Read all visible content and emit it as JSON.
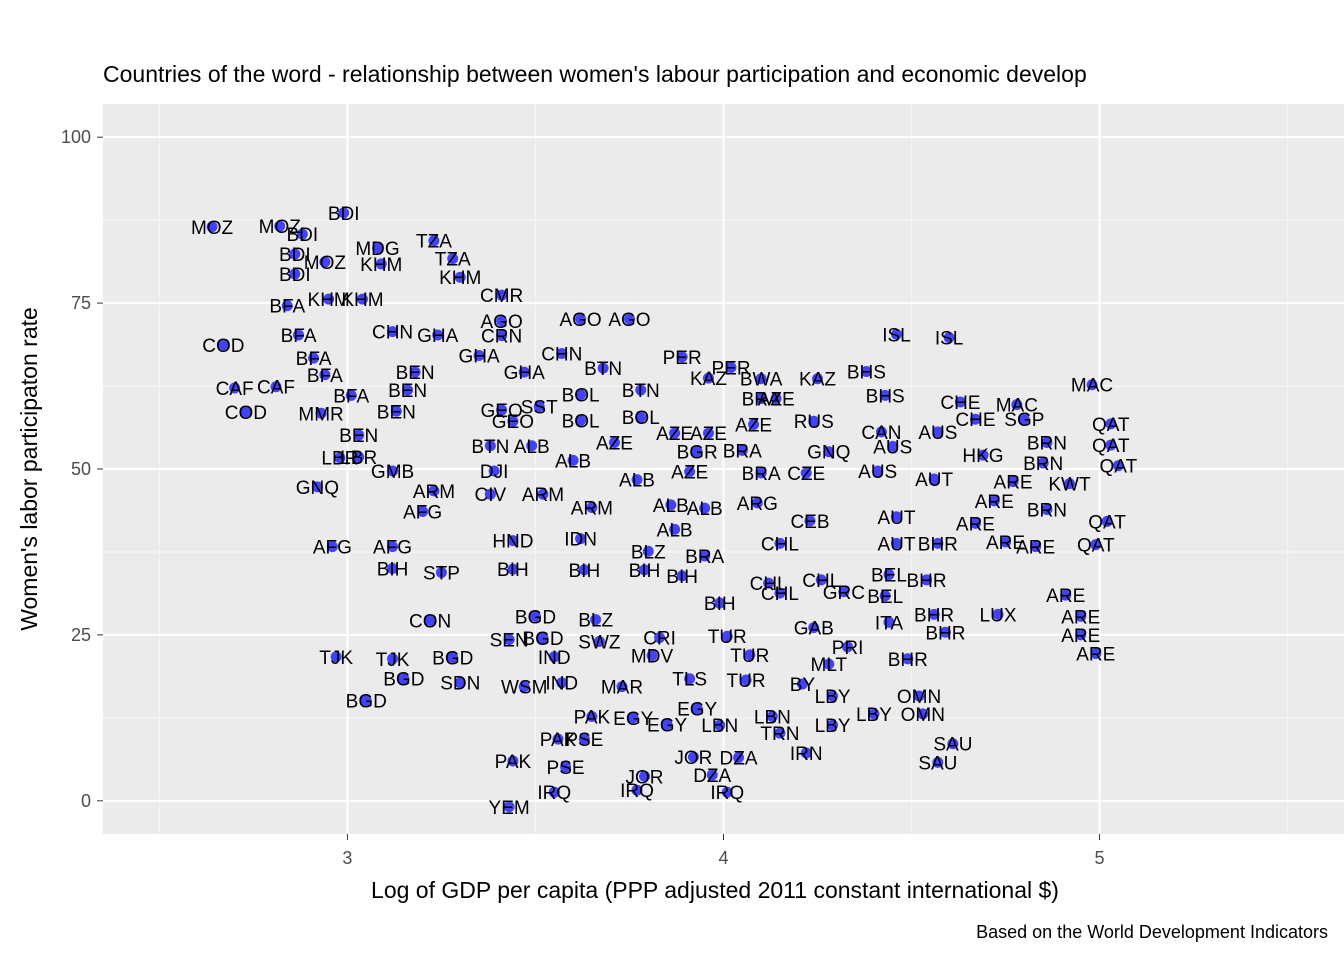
{
  "chart_data": {
    "type": "scatter",
    "title": "Countries of the word - relationship between women's labour participation and economic develop",
    "xlabel": "Log of GDP per capita (PPP adjusted 2011 constant international $)",
    "ylabel": "Women's labor participaton rate",
    "caption": "Based on the World Development Indicators",
    "xlim": [
      2.35,
      5.65
    ],
    "ylim": [
      -5,
      105
    ],
    "x_ticks": [
      3,
      4,
      5
    ],
    "x_tick_labels": [
      "3",
      "4",
      "5"
    ],
    "y_ticks": [
      0,
      25,
      50,
      75,
      100
    ],
    "y_tick_labels": [
      "0",
      "25",
      "50",
      "75",
      "100"
    ],
    "grid": true,
    "legend": "none",
    "point_color": "#0000ff",
    "panel_color": "#ebebeb",
    "points": [
      {
        "x": 2.64,
        "y": 86.5,
        "label": "MOZ"
      },
      {
        "x": 2.82,
        "y": 86.6,
        "label": "MOZ"
      },
      {
        "x": 2.94,
        "y": 81.2,
        "label": "MOZ"
      },
      {
        "x": 2.99,
        "y": 88.6,
        "label": "BDI"
      },
      {
        "x": 2.88,
        "y": 85.4,
        "label": "BDI"
      },
      {
        "x": 2.86,
        "y": 82.4,
        "label": "BDI"
      },
      {
        "x": 2.86,
        "y": 79.4,
        "label": "BDI"
      },
      {
        "x": 3.08,
        "y": 83.3,
        "label": "MDG"
      },
      {
        "x": 3.23,
        "y": 84.4,
        "label": "TZA"
      },
      {
        "x": 3.28,
        "y": 81.7,
        "label": "TZA"
      },
      {
        "x": 3.09,
        "y": 80.9,
        "label": "KHM"
      },
      {
        "x": 3.3,
        "y": 78.9,
        "label": "KHM"
      },
      {
        "x": 3.04,
        "y": 75.6,
        "label": "KHM"
      },
      {
        "x": 2.95,
        "y": 75.6,
        "label": "KHM"
      },
      {
        "x": 2.84,
        "y": 74.6,
        "label": "BFA"
      },
      {
        "x": 2.87,
        "y": 70.2,
        "label": "BFA"
      },
      {
        "x": 2.91,
        "y": 66.7,
        "label": "BFA"
      },
      {
        "x": 2.94,
        "y": 64.2,
        "label": "BFA"
      },
      {
        "x": 3.01,
        "y": 61.1,
        "label": "BFA"
      },
      {
        "x": 3.41,
        "y": 76.2,
        "label": "CMR"
      },
      {
        "x": 3.41,
        "y": 72.3,
        "label": "AGO"
      },
      {
        "x": 3.62,
        "y": 72.6,
        "label": "AGO"
      },
      {
        "x": 3.75,
        "y": 72.6,
        "label": "AGO"
      },
      {
        "x": 3.12,
        "y": 70.7,
        "label": "CHN"
      },
      {
        "x": 3.24,
        "y": 70.2,
        "label": "GHA"
      },
      {
        "x": 3.41,
        "y": 70.1,
        "label": "CRN"
      },
      {
        "x": 3.35,
        "y": 67.1,
        "label": "GHA"
      },
      {
        "x": 3.57,
        "y": 67.4,
        "label": "CHN"
      },
      {
        "x": 2.67,
        "y": 68.7,
        "label": "COD"
      },
      {
        "x": 2.7,
        "y": 62.2,
        "label": "CAF"
      },
      {
        "x": 2.81,
        "y": 62.4,
        "label": "CAF"
      },
      {
        "x": 2.73,
        "y": 58.6,
        "label": "COD"
      },
      {
        "x": 2.93,
        "y": 58.4,
        "label": "MMR"
      },
      {
        "x": 3.18,
        "y": 64.6,
        "label": "BEN"
      },
      {
        "x": 3.16,
        "y": 61.9,
        "label": "BEN"
      },
      {
        "x": 3.13,
        "y": 58.7,
        "label": "BEN"
      },
      {
        "x": 3.03,
        "y": 55.1,
        "label": "BEN"
      },
      {
        "x": 3.47,
        "y": 64.6,
        "label": "GHA"
      },
      {
        "x": 3.68,
        "y": 65.2,
        "label": "BTN"
      },
      {
        "x": 3.62,
        "y": 61.2,
        "label": "BOL"
      },
      {
        "x": 3.78,
        "y": 61.9,
        "label": "BTN"
      },
      {
        "x": 3.62,
        "y": 57.3,
        "label": "BOL"
      },
      {
        "x": 3.78,
        "y": 57.8,
        "label": "BOL"
      },
      {
        "x": 3.89,
        "y": 66.9,
        "label": "PER"
      },
      {
        "x": 4.02,
        "y": 65.3,
        "label": "PER"
      },
      {
        "x": 3.96,
        "y": 63.7,
        "label": "KAZ"
      },
      {
        "x": 4.1,
        "y": 63.6,
        "label": "BWA"
      },
      {
        "x": 4.25,
        "y": 63.6,
        "label": "KAZ"
      },
      {
        "x": 4.1,
        "y": 60.6,
        "label": "BRA"
      },
      {
        "x": 4.14,
        "y": 60.6,
        "label": "AZE"
      },
      {
        "x": 4.08,
        "y": 56.7,
        "label": "AZE"
      },
      {
        "x": 3.41,
        "y": 58.9,
        "label": "GEO"
      },
      {
        "x": 3.44,
        "y": 57.2,
        "label": "GEO"
      },
      {
        "x": 3.51,
        "y": 59.4,
        "label": "SST"
      },
      {
        "x": 3.38,
        "y": 53.5,
        "label": "BTN"
      },
      {
        "x": 3.49,
        "y": 53.5,
        "label": "ALB"
      },
      {
        "x": 3.71,
        "y": 54.0,
        "label": "AZE"
      },
      {
        "x": 3.6,
        "y": 51.3,
        "label": "ALB"
      },
      {
        "x": 3.87,
        "y": 55.4,
        "label": "AZE"
      },
      {
        "x": 3.96,
        "y": 55.4,
        "label": "AZE"
      },
      {
        "x": 4.24,
        "y": 57.2,
        "label": "RUS"
      },
      {
        "x": 3.93,
        "y": 52.6,
        "label": "BGR"
      },
      {
        "x": 4.05,
        "y": 52.8,
        "label": "BRA"
      },
      {
        "x": 4.28,
        "y": 52.6,
        "label": "GNQ"
      },
      {
        "x": 4.45,
        "y": 53.4,
        "label": "AUS"
      },
      {
        "x": 4.42,
        "y": 55.6,
        "label": "CAN"
      },
      {
        "x": 4.57,
        "y": 55.6,
        "label": "AUS"
      },
      {
        "x": 4.1,
        "y": 49.4,
        "label": "BRA"
      },
      {
        "x": 4.22,
        "y": 49.4,
        "label": "CZE"
      },
      {
        "x": 4.41,
        "y": 49.7,
        "label": "AUS"
      },
      {
        "x": 4.56,
        "y": 48.5,
        "label": "AUT"
      },
      {
        "x": 4.69,
        "y": 52.1,
        "label": "HKG"
      },
      {
        "x": 3.77,
        "y": 48.4,
        "label": "ALB"
      },
      {
        "x": 3.91,
        "y": 49.6,
        "label": "AZE"
      },
      {
        "x": 3.95,
        "y": 44.1,
        "label": "ALB"
      },
      {
        "x": 4.09,
        "y": 44.9,
        "label": "ARG"
      },
      {
        "x": 4.23,
        "y": 42.2,
        "label": "CEB"
      },
      {
        "x": 4.46,
        "y": 42.8,
        "label": "AUT"
      },
      {
        "x": 2.98,
        "y": 51.7,
        "label": "LBR"
      },
      {
        "x": 3.03,
        "y": 51.8,
        "label": "LBR"
      },
      {
        "x": 2.92,
        "y": 47.3,
        "label": "GNQ"
      },
      {
        "x": 3.12,
        "y": 49.7,
        "label": "GMB"
      },
      {
        "x": 3.23,
        "y": 46.7,
        "label": "ARM"
      },
      {
        "x": 3.39,
        "y": 49.7,
        "label": "DJI"
      },
      {
        "x": 3.38,
        "y": 46.2,
        "label": "CIV"
      },
      {
        "x": 3.52,
        "y": 46.2,
        "label": "ARM"
      },
      {
        "x": 3.65,
        "y": 44.2,
        "label": "ARM"
      },
      {
        "x": 3.86,
        "y": 44.6,
        "label": "ALB"
      },
      {
        "x": 3.2,
        "y": 43.6,
        "label": "AFG"
      },
      {
        "x": 2.96,
        "y": 38.3,
        "label": "AFG"
      },
      {
        "x": 3.12,
        "y": 38.3,
        "label": "AFG"
      },
      {
        "x": 3.12,
        "y": 35.0,
        "label": "BIH"
      },
      {
        "x": 3.25,
        "y": 34.4,
        "label": "STP"
      },
      {
        "x": 3.44,
        "y": 39.2,
        "label": "HND"
      },
      {
        "x": 3.62,
        "y": 39.5,
        "label": "IDN"
      },
      {
        "x": 3.87,
        "y": 40.9,
        "label": "ALB"
      },
      {
        "x": 3.8,
        "y": 37.6,
        "label": "BLZ"
      },
      {
        "x": 3.95,
        "y": 36.9,
        "label": "BRA"
      },
      {
        "x": 4.15,
        "y": 38.8,
        "label": "CHL"
      },
      {
        "x": 4.46,
        "y": 38.8,
        "label": "AUT"
      },
      {
        "x": 4.57,
        "y": 38.8,
        "label": "BHR"
      },
      {
        "x": 4.75,
        "y": 39.0,
        "label": "ARE"
      },
      {
        "x": 4.26,
        "y": 33.3,
        "label": "CHL"
      },
      {
        "x": 4.15,
        "y": 31.3,
        "label": "CHL"
      },
      {
        "x": 4.32,
        "y": 31.5,
        "label": "GRC"
      },
      {
        "x": 4.44,
        "y": 34.1,
        "label": "BEL"
      },
      {
        "x": 4.43,
        "y": 30.9,
        "label": "BEL"
      },
      {
        "x": 4.54,
        "y": 33.3,
        "label": "BHR"
      },
      {
        "x": 4.56,
        "y": 28.1,
        "label": "BHR"
      },
      {
        "x": 4.44,
        "y": 26.9,
        "label": "ITA"
      },
      {
        "x": 4.73,
        "y": 28.1,
        "label": "LUX"
      },
      {
        "x": 4.24,
        "y": 26.1,
        "label": "GAB"
      },
      {
        "x": 4.33,
        "y": 23.2,
        "label": "PRI"
      },
      {
        "x": 4.59,
        "y": 25.4,
        "label": "BHR"
      },
      {
        "x": 4.49,
        "y": 21.4,
        "label": "BHR"
      },
      {
        "x": 4.28,
        "y": 20.6,
        "label": "MLT"
      },
      {
        "x": 3.44,
        "y": 34.9,
        "label": "BIH"
      },
      {
        "x": 3.63,
        "y": 34.8,
        "label": "BIH"
      },
      {
        "x": 3.79,
        "y": 34.8,
        "label": "BIH"
      },
      {
        "x": 3.89,
        "y": 33.9,
        "label": "BIH"
      },
      {
        "x": 3.99,
        "y": 29.8,
        "label": "BIH"
      },
      {
        "x": 4.12,
        "y": 32.8,
        "label": "CHL"
      },
      {
        "x": 3.22,
        "y": 27.2,
        "label": "CON"
      },
      {
        "x": 3.43,
        "y": 24.3,
        "label": "SEN"
      },
      {
        "x": 3.52,
        "y": 24.5,
        "label": "BGD"
      },
      {
        "x": 3.5,
        "y": 27.8,
        "label": "BGD"
      },
      {
        "x": 3.66,
        "y": 27.3,
        "label": "BLZ"
      },
      {
        "x": 3.83,
        "y": 24.6,
        "label": "CRI"
      },
      {
        "x": 3.67,
        "y": 24.0,
        "label": "SWZ"
      },
      {
        "x": 3.55,
        "y": 21.7,
        "label": "IND"
      },
      {
        "x": 3.81,
        "y": 21.9,
        "label": "MDV"
      },
      {
        "x": 4.01,
        "y": 24.8,
        "label": "TUR"
      },
      {
        "x": 4.07,
        "y": 22.0,
        "label": "TUR"
      },
      {
        "x": 2.97,
        "y": 21.7,
        "label": "TJK"
      },
      {
        "x": 3.12,
        "y": 21.4,
        "label": "TJK"
      },
      {
        "x": 3.28,
        "y": 21.6,
        "label": "BGD"
      },
      {
        "x": 3.15,
        "y": 18.4,
        "label": "BGD"
      },
      {
        "x": 3.3,
        "y": 17.8,
        "label": "SDN"
      },
      {
        "x": 3.47,
        "y": 17.2,
        "label": "WSM"
      },
      {
        "x": 3.57,
        "y": 17.8,
        "label": "IND"
      },
      {
        "x": 3.73,
        "y": 17.2,
        "label": "MAR"
      },
      {
        "x": 3.91,
        "y": 18.4,
        "label": "TLS"
      },
      {
        "x": 4.06,
        "y": 18.2,
        "label": "TUR"
      },
      {
        "x": 4.21,
        "y": 17.6,
        "label": "BY"
      },
      {
        "x": 3.05,
        "y": 15.1,
        "label": "BGD"
      },
      {
        "x": 4.29,
        "y": 15.8,
        "label": "LBY"
      },
      {
        "x": 4.52,
        "y": 15.8,
        "label": "OMN"
      },
      {
        "x": 4.4,
        "y": 13.1,
        "label": "LBY"
      },
      {
        "x": 4.53,
        "y": 13.1,
        "label": "OMN"
      },
      {
        "x": 3.65,
        "y": 12.7,
        "label": "PAK"
      },
      {
        "x": 3.76,
        "y": 12.5,
        "label": "EGY"
      },
      {
        "x": 3.93,
        "y": 13.9,
        "label": "EGY"
      },
      {
        "x": 3.85,
        "y": 11.5,
        "label": "EGY"
      },
      {
        "x": 3.99,
        "y": 11.4,
        "label": "LBN"
      },
      {
        "x": 4.13,
        "y": 12.7,
        "label": "LBN"
      },
      {
        "x": 4.15,
        "y": 10.2,
        "label": "TRN"
      },
      {
        "x": 4.29,
        "y": 11.4,
        "label": "LBY"
      },
      {
        "x": 3.56,
        "y": 9.3,
        "label": "PAK"
      },
      {
        "x": 3.63,
        "y": 9.3,
        "label": "PSE"
      },
      {
        "x": 3.44,
        "y": 6.0,
        "label": "PAK"
      },
      {
        "x": 3.58,
        "y": 5.1,
        "label": "PSE"
      },
      {
        "x": 4.22,
        "y": 7.2,
        "label": "IRN"
      },
      {
        "x": 3.92,
        "y": 6.6,
        "label": "JOR"
      },
      {
        "x": 4.04,
        "y": 6.5,
        "label": "DZA"
      },
      {
        "x": 3.79,
        "y": 3.7,
        "label": "JOR"
      },
      {
        "x": 3.97,
        "y": 3.9,
        "label": "DZA"
      },
      {
        "x": 3.55,
        "y": 1.3,
        "label": "IRQ"
      },
      {
        "x": 3.77,
        "y": 1.6,
        "label": "IRQ"
      },
      {
        "x": 4.01,
        "y": 1.3,
        "label": "IRQ"
      },
      {
        "x": 3.43,
        "y": -0.9,
        "label": "YEM"
      },
      {
        "x": 4.61,
        "y": 8.6,
        "label": "SAU"
      },
      {
        "x": 4.57,
        "y": 5.8,
        "label": "SAU"
      },
      {
        "x": 4.46,
        "y": 70.3,
        "label": "ISL"
      },
      {
        "x": 4.6,
        "y": 69.8,
        "label": "ISL"
      },
      {
        "x": 4.38,
        "y": 64.7,
        "label": "BHS"
      },
      {
        "x": 4.43,
        "y": 61.1,
        "label": "BHS"
      },
      {
        "x": 4.63,
        "y": 60.1,
        "label": "CHE"
      },
      {
        "x": 4.78,
        "y": 59.7,
        "label": "MAC"
      },
      {
        "x": 4.98,
        "y": 62.7,
        "label": "MAC"
      },
      {
        "x": 4.67,
        "y": 57.5,
        "label": "CHE"
      },
      {
        "x": 4.8,
        "y": 57.5,
        "label": "SGP"
      },
      {
        "x": 5.03,
        "y": 56.8,
        "label": "QAT"
      },
      {
        "x": 4.86,
        "y": 54.0,
        "label": "BRN"
      },
      {
        "x": 5.03,
        "y": 53.6,
        "label": "QAT"
      },
      {
        "x": 4.85,
        "y": 50.9,
        "label": "BRN"
      },
      {
        "x": 5.05,
        "y": 50.5,
        "label": "QAT"
      },
      {
        "x": 4.77,
        "y": 48.1,
        "label": "ARE"
      },
      {
        "x": 4.92,
        "y": 47.8,
        "label": "KWT"
      },
      {
        "x": 4.72,
        "y": 45.2,
        "label": "ARE"
      },
      {
        "x": 4.86,
        "y": 43.9,
        "label": "BRN"
      },
      {
        "x": 4.67,
        "y": 41.8,
        "label": "ARE"
      },
      {
        "x": 5.02,
        "y": 42.1,
        "label": "QAT"
      },
      {
        "x": 4.83,
        "y": 38.3,
        "label": "ARE"
      },
      {
        "x": 4.99,
        "y": 38.6,
        "label": "QAT"
      },
      {
        "x": 4.91,
        "y": 31.0,
        "label": "ARE"
      },
      {
        "x": 4.95,
        "y": 27.8,
        "label": "ARE"
      },
      {
        "x": 4.95,
        "y": 25.0,
        "label": "ARE"
      },
      {
        "x": 4.99,
        "y": 22.2,
        "label": "ARE"
      }
    ]
  }
}
